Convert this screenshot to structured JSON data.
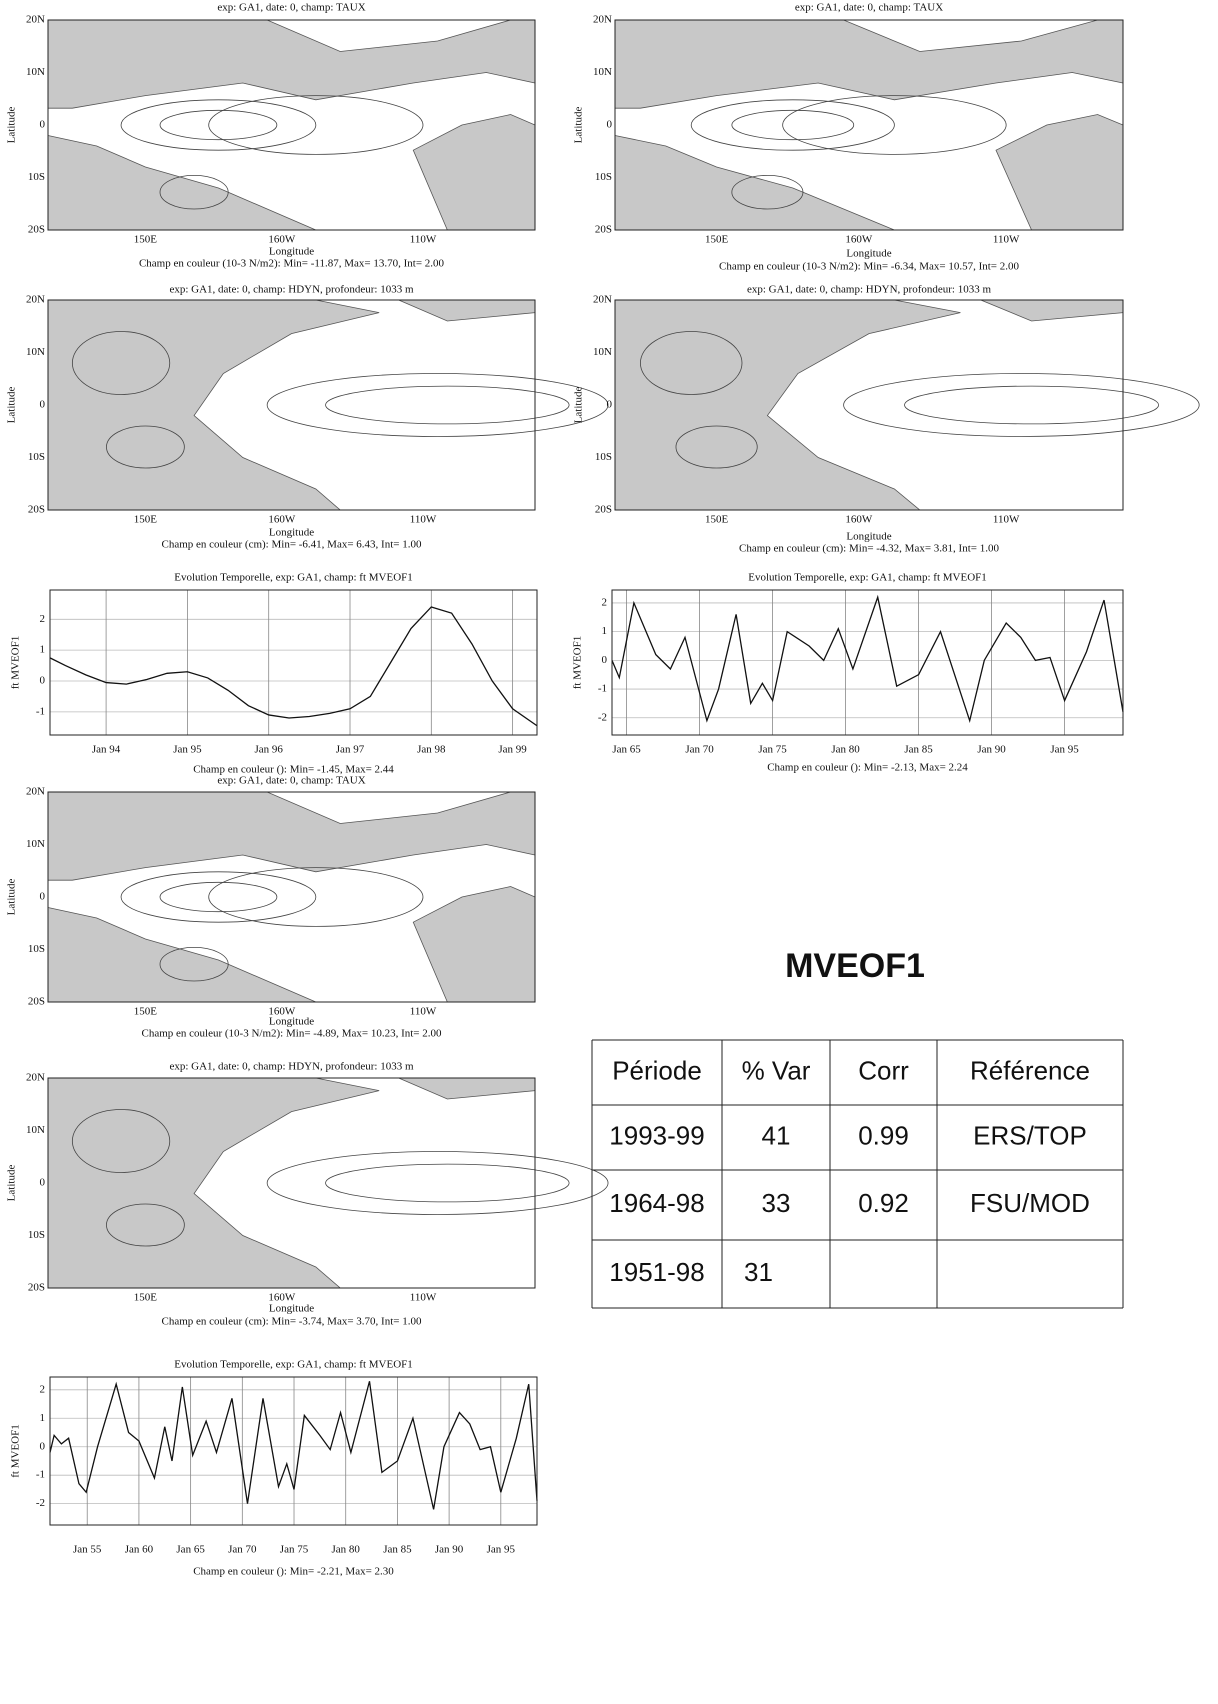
{
  "maps": [
    {
      "title": "exp: GA1, date: 0, champ: TAUX",
      "ylabel": "Latitude",
      "xlabel": "Longitude",
      "yticks": [
        "20N",
        "10N",
        "0",
        "10S",
        "20S"
      ],
      "xticks": [
        "150E",
        "160W",
        "110W"
      ],
      "caption": "Champ en couleur (10-3 N/m2): Min= -11.87, Max= 13.70, Int= 2.00"
    },
    {
      "title": "exp: GA1, date: 0, champ: TAUX",
      "ylabel": "Latitude",
      "xlabel": "Longitude",
      "yticks": [
        "20N",
        "10N",
        "0",
        "10S",
        "20S"
      ],
      "xticks": [
        "150E",
        "160W",
        "110W"
      ],
      "caption": "Champ en couleur (10-3 N/m2): Min= -6.34, Max= 10.57, Int= 2.00"
    },
    {
      "title": "exp: GA1, date: 0, champ: HDYN, profondeur: 1033 m",
      "ylabel": "Latitude",
      "xlabel": "Longitude",
      "yticks": [
        "20N",
        "10N",
        "0",
        "10S",
        "20S"
      ],
      "xticks": [
        "150E",
        "160W",
        "110W"
      ],
      "caption": "Champ en couleur (cm): Min= -6.41, Max= 6.43, Int= 1.00"
    },
    {
      "title": "exp: GA1, date: 0, champ: HDYN, profondeur: 1033 m",
      "ylabel": "Latitude",
      "xlabel": "Longitude",
      "yticks": [
        "20N",
        "10N",
        "0",
        "10S",
        "20S"
      ],
      "xticks": [
        "150E",
        "160W",
        "110W"
      ],
      "caption": "Champ en couleur (cm): Min= -4.32, Max= 3.81, Int= 1.00"
    },
    {
      "title": "exp: GA1, date: 0, champ: TAUX",
      "ylabel": "Latitude",
      "xlabel": "Longitude",
      "yticks": [
        "20N",
        "10N",
        "0",
        "10S",
        "20S"
      ],
      "xticks": [
        "150E",
        "160W",
        "110W"
      ],
      "caption": "Champ en couleur (10-3 N/m2): Min= -4.89, Max= 10.23, Int= 2.00"
    },
    {
      "title": "exp: GA1, date: 0, champ: HDYN, profondeur: 1033 m",
      "ylabel": "Latitude",
      "xlabel": "Longitude",
      "yticks": [
        "20N",
        "10N",
        "0",
        "10S",
        "20S"
      ],
      "xticks": [
        "150E",
        "160W",
        "110W"
      ],
      "caption": "Champ en couleur (cm): Min= -3.74, Max= 3.70, Int= 1.00"
    }
  ],
  "chart_data": [
    {
      "type": "line",
      "title": "Evolution Temporelle, exp: GA1, champ: ft MVEOF1",
      "ylabel": "ft MVEOF1",
      "caption": "Champ en couleur (): Min= -1.45, Max= 2.44",
      "grid": true,
      "x": [
        1993.31,
        1993.5,
        1993.75,
        1994,
        1994.25,
        1994.5,
        1994.75,
        1995,
        1995.25,
        1995.5,
        1995.75,
        1996,
        1996.25,
        1996.5,
        1996.75,
        1997,
        1997.25,
        1997.5,
        1997.75,
        1998,
        1998.25,
        1998.5,
        1998.75,
        1999,
        1999.3
      ],
      "series": [
        {
          "name": "ft MVEOF1",
          "color": "#111111",
          "values": [
            0.75,
            0.5,
            0.2,
            -0.05,
            -0.1,
            0.05,
            0.25,
            0.3,
            0.1,
            -0.3,
            -0.8,
            -1.1,
            -1.2,
            -1.15,
            -1.05,
            -0.9,
            -0.5,
            0.6,
            1.7,
            2.4,
            2.2,
            1.2,
            0.0,
            -0.9,
            -1.45
          ]
        }
      ],
      "xlim": [
        1993.31,
        1999.3
      ],
      "xticks": [
        {
          "value": 1994,
          "label": "Jan 94"
        },
        {
          "value": 1995,
          "label": "Jan 95"
        },
        {
          "value": 1996,
          "label": "Jan 96"
        },
        {
          "value": 1997,
          "label": "Jan 97"
        },
        {
          "value": 1998,
          "label": "Jan 98"
        },
        {
          "value": 1999,
          "label": "Jan 99"
        }
      ],
      "ylim": [
        -1.75,
        2.95
      ],
      "yticks": [
        -1,
        0,
        1,
        2
      ]
    },
    {
      "type": "line",
      "title": "Evolution Temporelle, exp: GA1, champ: ft MVEOF1",
      "ylabel": "ft MVEOF1",
      "caption": "Champ en couleur (): Min= -2.13, Max= 2.24",
      "grid": true,
      "x": [
        1964,
        1964.5,
        1965.5,
        1966.5,
        1967,
        1968,
        1969,
        1970.5,
        1971.3,
        1972.5,
        1973.5,
        1974.3,
        1975,
        1976,
        1977.5,
        1978.5,
        1979.5,
        1980.5,
        1982.2,
        1983.5,
        1985,
        1986.5,
        1988.5,
        1989.5,
        1991,
        1992,
        1993,
        1994,
        1995,
        1996.5,
        1997.7,
        1999
      ],
      "series": [
        {
          "name": "ft MVEOF1",
          "color": "#111111",
          "values": [
            0.0,
            -0.6,
            2.0,
            0.8,
            0.2,
            -0.3,
            0.8,
            -2.1,
            -1.0,
            1.6,
            -1.5,
            -0.8,
            -1.4,
            1.0,
            0.5,
            0.0,
            1.1,
            -0.3,
            2.2,
            -0.9,
            -0.5,
            1.0,
            -2.1,
            0.0,
            1.3,
            0.8,
            0.0,
            0.1,
            -1.4,
            0.3,
            2.1,
            -1.8
          ]
        }
      ],
      "xlim": [
        1964,
        1999
      ],
      "xticks": [
        {
          "value": 1965,
          "label": "Jan 65"
        },
        {
          "value": 1970,
          "label": "Jan 70"
        },
        {
          "value": 1975,
          "label": "Jan 75"
        },
        {
          "value": 1980,
          "label": "Jan 80"
        },
        {
          "value": 1985,
          "label": "Jan 85"
        },
        {
          "value": 1990,
          "label": "Jan 90"
        },
        {
          "value": 1995,
          "label": "Jan 95"
        }
      ],
      "ylim": [
        -2.6,
        2.45
      ],
      "yticks": [
        -2,
        -1,
        0,
        1,
        2
      ]
    },
    {
      "type": "line",
      "title": "Evolution Temporelle, exp: GA1, champ: ft MVEOF1",
      "ylabel": "ft MVEOF1",
      "caption": "Champ en couleur (): Min= -2.21, Max= 2.30",
      "grid": true,
      "x": [
        1951.4,
        1951.8,
        1952.5,
        1953.2,
        1954.2,
        1954.9,
        1956,
        1957.8,
        1959,
        1960,
        1961.5,
        1962.5,
        1963.2,
        1964.2,
        1965.2,
        1966.5,
        1967.5,
        1969,
        1970.5,
        1972,
        1973.5,
        1974.3,
        1975,
        1976,
        1977.5,
        1978.5,
        1979.5,
        1980.5,
        1982.3,
        1983.5,
        1985,
        1986.5,
        1988.5,
        1989.5,
        1991,
        1992,
        1993,
        1994,
        1995,
        1996.5,
        1997.7,
        1998.5
      ],
      "series": [
        {
          "name": "ft MVEOF1",
          "color": "#111111",
          "values": [
            -0.2,
            0.4,
            0.1,
            0.3,
            -1.3,
            -1.6,
            0.0,
            2.2,
            0.5,
            0.2,
            -1.1,
            0.7,
            -0.5,
            2.1,
            -0.3,
            0.9,
            -0.2,
            1.7,
            -2.0,
            1.7,
            -1.4,
            -0.6,
            -1.5,
            1.1,
            0.4,
            -0.1,
            1.2,
            -0.2,
            2.3,
            -0.9,
            -0.5,
            1.0,
            -2.2,
            0.0,
            1.2,
            0.8,
            -0.1,
            0.0,
            -1.6,
            0.3,
            2.2,
            -1.9
          ]
        }
      ],
      "xlim": [
        1951.4,
        1998.5
      ],
      "xticks": [
        {
          "value": 1955,
          "label": "Jan 55"
        },
        {
          "value": 1960,
          "label": "Jan 60"
        },
        {
          "value": 1965,
          "label": "Jan 65"
        },
        {
          "value": 1970,
          "label": "Jan 70"
        },
        {
          "value": 1975,
          "label": "Jan 75"
        },
        {
          "value": 1980,
          "label": "Jan 80"
        },
        {
          "value": 1985,
          "label": "Jan 85"
        },
        {
          "value": 1990,
          "label": "Jan 90"
        },
        {
          "value": 1995,
          "label": "Jan 95"
        }
      ],
      "ylim": [
        -2.75,
        2.45
      ],
      "yticks": [
        -2,
        -1,
        0,
        1,
        2
      ]
    }
  ],
  "heading": "MVEOF1",
  "table": {
    "header": [
      "Période",
      "% Var",
      "Corr",
      "Référence"
    ],
    "rows": [
      [
        "1993-99",
        "41",
        "0.99",
        "ERS/TOP"
      ],
      [
        "1964-98",
        "33",
        "0.92",
        "FSU/MOD"
      ],
      [
        "1951-98",
        "31",
        null,
        null
      ]
    ]
  }
}
